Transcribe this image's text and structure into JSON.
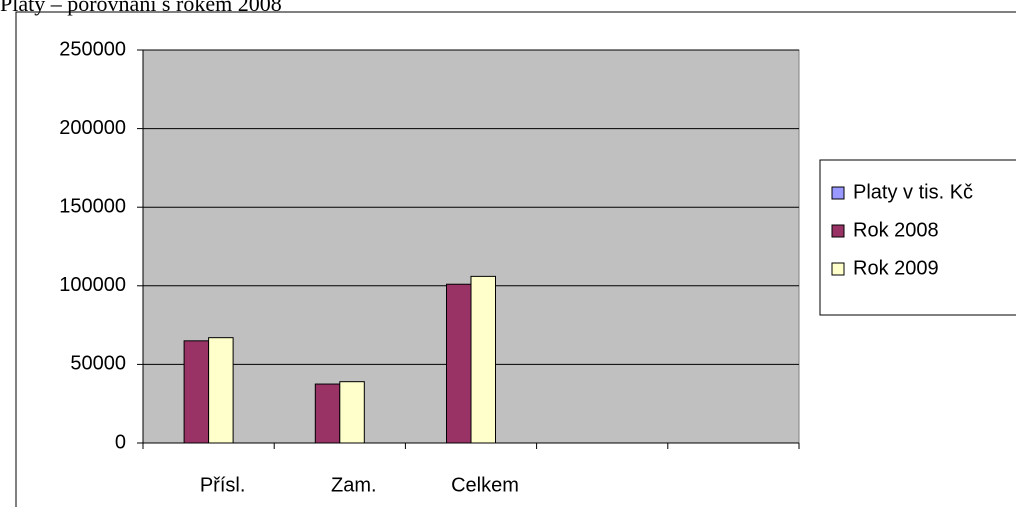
{
  "chart_data": {
    "type": "bar",
    "title": "Platy – porovnání s rokem 2008",
    "categories": [
      "Přísl.",
      "Zam.",
      "Celkem",
      null,
      null
    ],
    "series": [
      {
        "name": "Platy v tis. Kč",
        "color": "#9999ff",
        "values": [
          null,
          null,
          null,
          null,
          null
        ]
      },
      {
        "name": "Rok 2008",
        "color": "#993366",
        "values": [
          65000,
          37500,
          101000,
          null,
          null
        ]
      },
      {
        "name": "Rok 2009",
        "color": "#ffffcc",
        "values": [
          67000,
          39000,
          106000,
          null,
          null
        ]
      }
    ],
    "ylim": [
      0,
      250000
    ],
    "yticks": [
      0,
      50000,
      100000,
      150000,
      200000,
      250000
    ],
    "grid": true,
    "legend": "right"
  }
}
